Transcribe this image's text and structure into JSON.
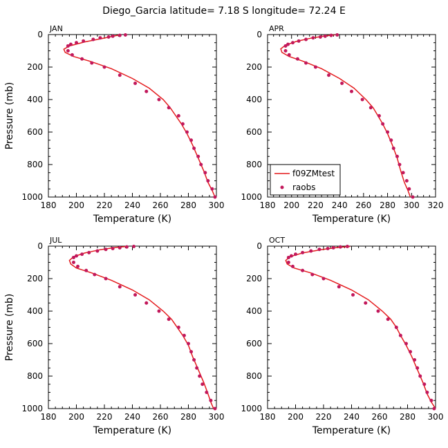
{
  "figure": {
    "title": "Diego_Garcia   latitude= 7.18 S longitude= 72.24 E"
  },
  "colors": {
    "model": "#e41a1c",
    "obs": "#c2185b",
    "axis": "#000000"
  },
  "legend": {
    "model_label": "f09ZMtest",
    "obs_label": "raobs"
  },
  "chart_data": [
    {
      "type": "line",
      "panel": "JAN",
      "xlabel": "Temperature (K)",
      "ylabel": "Pressure (mb)",
      "xlim": [
        180,
        300
      ],
      "ylim": [
        1000,
        0
      ],
      "xticks": [
        180,
        200,
        220,
        240,
        260,
        280,
        300
      ],
      "yticks": [
        0,
        200,
        400,
        600,
        800,
        1000
      ],
      "legend": false,
      "series": [
        {
          "name": "f09ZMtest",
          "style": "line",
          "x": [
            231,
            226,
            218,
            206,
            195,
            191,
            192,
            198,
            210,
            225,
            240,
            252,
            262,
            267,
            271,
            275,
            279,
            283,
            287,
            291,
            294,
            297,
            299
          ],
          "y": [
            2,
            10,
            25,
            45,
            70,
            90,
            110,
            135,
            165,
            210,
            270,
            330,
            400,
            450,
            500,
            550,
            610,
            680,
            760,
            840,
            910,
            960,
            1000
          ]
        },
        {
          "name": "raobs",
          "style": "points",
          "x": [
            235,
            231,
            226,
            223,
            217,
            212,
            205,
            200,
            196,
            194,
            194,
            197,
            204,
            211,
            220,
            231,
            242,
            250,
            259,
            266,
            273,
            276,
            279,
            282,
            284,
            287,
            289,
            292,
            294,
            297,
            299
          ],
          "y": [
            2,
            5,
            10,
            15,
            20,
            30,
            40,
            50,
            60,
            70,
            100,
            125,
            150,
            175,
            200,
            250,
            300,
            350,
            400,
            450,
            500,
            550,
            600,
            650,
            700,
            750,
            800,
            850,
            900,
            950,
            1000
          ]
        }
      ]
    },
    {
      "type": "line",
      "panel": "APR",
      "xlabel": "Temperature (K)",
      "ylabel": "",
      "xlim": [
        180,
        320
      ],
      "ylim": [
        1000,
        0
      ],
      "xticks": [
        180,
        200,
        220,
        240,
        260,
        280,
        300,
        320
      ],
      "yticks": [
        0,
        200,
        400,
        600,
        800,
        1000
      ],
      "legend": true,
      "series": [
        {
          "name": "f09ZMtest",
          "style": "line",
          "x": [
            236,
            228,
            216,
            204,
            195,
            191,
            192,
            198,
            210,
            225,
            240,
            252,
            262,
            268,
            272,
            276,
            280,
            284,
            288,
            291,
            294,
            297,
            299
          ],
          "y": [
            2,
            8,
            22,
            42,
            65,
            88,
            110,
            135,
            165,
            210,
            270,
            330,
            400,
            450,
            500,
            550,
            610,
            680,
            760,
            840,
            910,
            960,
            1000
          ]
        },
        {
          "name": "raobs",
          "style": "points",
          "x": [
            238,
            233,
            228,
            224,
            218,
            212,
            206,
            201,
            197,
            195,
            195,
            198,
            205,
            212,
            220,
            231,
            242,
            250,
            259,
            266,
            273,
            276,
            280,
            283,
            285,
            288,
            290,
            293,
            296,
            298,
            301
          ],
          "y": [
            2,
            5,
            10,
            15,
            20,
            30,
            40,
            50,
            60,
            70,
            100,
            125,
            150,
            175,
            200,
            250,
            300,
            350,
            400,
            450,
            500,
            550,
            600,
            650,
            700,
            750,
            800,
            850,
            900,
            950,
            1000
          ]
        }
      ]
    },
    {
      "type": "line",
      "panel": "JUL",
      "xlabel": "Temperature (K)",
      "ylabel": "Pressure (mb)",
      "xlim": [
        180,
        300
      ],
      "ylim": [
        1000,
        0
      ],
      "xticks": [
        180,
        200,
        220,
        240,
        260,
        280,
        300
      ],
      "yticks": [
        0,
        200,
        400,
        600,
        800,
        1000
      ],
      "legend": false,
      "series": [
        {
          "name": "f09ZMtest",
          "style": "line",
          "x": [
            236,
            228,
            217,
            206,
            198,
            195,
            196,
            200,
            211,
            225,
            240,
            252,
            262,
            268,
            272,
            276,
            280,
            283,
            287,
            291,
            294,
            296,
            298
          ],
          "y": [
            2,
            8,
            22,
            42,
            65,
            88,
            110,
            135,
            165,
            210,
            270,
            330,
            400,
            450,
            500,
            550,
            610,
            680,
            760,
            840,
            910,
            960,
            1000
          ]
        },
        {
          "name": "raobs",
          "style": "points",
          "x": [
            241,
            236,
            231,
            226,
            221,
            215,
            209,
            204,
            200,
            198,
            198,
            201,
            207,
            213,
            221,
            231,
            242,
            250,
            259,
            266,
            273,
            277,
            280,
            282,
            284,
            286,
            288,
            290,
            293,
            296,
            299
          ],
          "y": [
            2,
            5,
            10,
            15,
            20,
            30,
            40,
            50,
            60,
            70,
            100,
            125,
            150,
            175,
            200,
            250,
            300,
            350,
            400,
            450,
            500,
            550,
            600,
            650,
            700,
            750,
            800,
            850,
            900,
            950,
            1000
          ]
        }
      ]
    },
    {
      "type": "line",
      "panel": "OCT",
      "xlabel": "Temperature (K)",
      "ylabel": "",
      "xlim": [
        180,
        300
      ],
      "ylim": [
        1000,
        0
      ],
      "xticks": [
        180,
        200,
        220,
        240,
        260,
        280,
        300
      ],
      "yticks": [
        0,
        200,
        400,
        600,
        800,
        1000
      ],
      "legend": false,
      "series": [
        {
          "name": "f09ZMtest",
          "style": "line",
          "x": [
            239,
            230,
            218,
            205,
            196,
            193,
            194,
            199,
            211,
            225,
            240,
            252,
            262,
            268,
            272,
            275,
            279,
            283,
            287,
            291,
            294,
            297,
            300
          ],
          "y": [
            2,
            8,
            22,
            42,
            65,
            88,
            110,
            135,
            165,
            210,
            270,
            330,
            400,
            450,
            500,
            550,
            610,
            680,
            760,
            840,
            910,
            960,
            1000
          ]
        },
        {
          "name": "raobs",
          "style": "points",
          "x": [
            237,
            232,
            227,
            223,
            217,
            211,
            205,
            200,
            197,
            195,
            195,
            198,
            205,
            212,
            220,
            231,
            241,
            250,
            259,
            266,
            272,
            275,
            279,
            282,
            285,
            287,
            289,
            292,
            294,
            297,
            299
          ],
          "y": [
            2,
            5,
            10,
            15,
            20,
            30,
            40,
            50,
            60,
            70,
            100,
            125,
            150,
            175,
            200,
            250,
            300,
            350,
            400,
            450,
            500,
            550,
            600,
            650,
            700,
            750,
            800,
            850,
            900,
            950,
            1000
          ]
        }
      ]
    }
  ]
}
